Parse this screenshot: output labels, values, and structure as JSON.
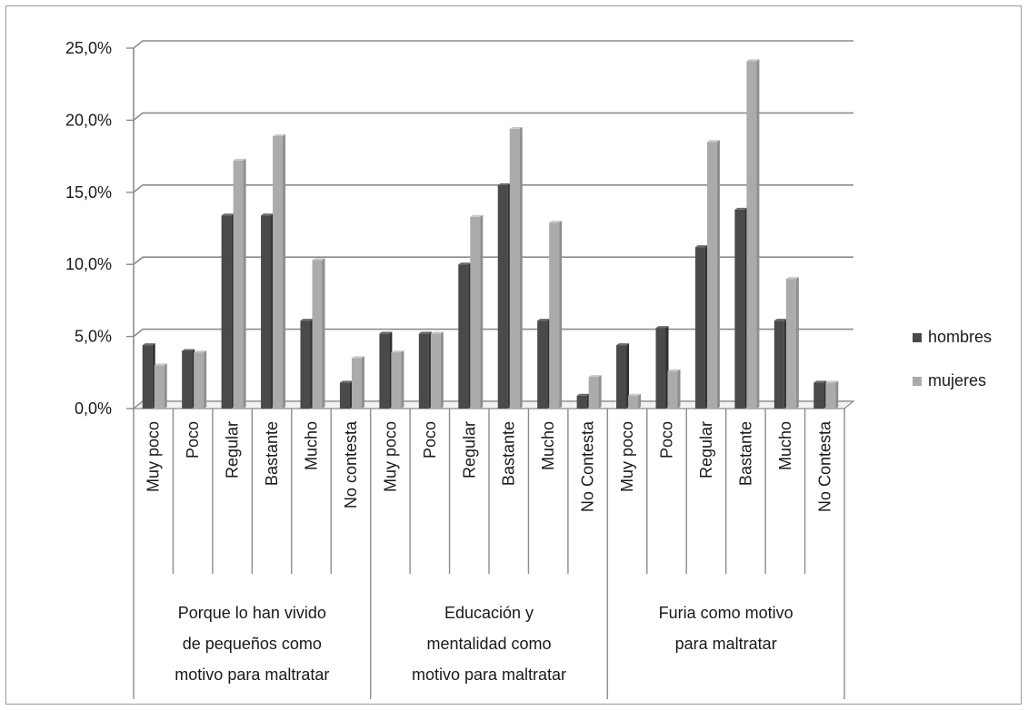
{
  "chart_data": {
    "type": "bar",
    "title": "",
    "xlabel": "",
    "ylabel": "",
    "ylim": [
      0,
      25
    ],
    "y_ticks": [
      "0,0%",
      "5,0%",
      "10,0%",
      "15,0%",
      "20,0%",
      "25,0%"
    ],
    "grid": true,
    "legend_position": "right",
    "categories": [
      "Muy poco",
      "Poco",
      "Regular",
      "Bastante",
      "Mucho",
      "No contesta",
      "Muy poco",
      "Poco",
      "Regular",
      "Bastante",
      "Mucho",
      "No Contesta",
      "Muy poco",
      "Poco",
      "Regular",
      "Bastante",
      "Mucho",
      "No Contesta"
    ],
    "groups": [
      {
        "label_lines": [
          "Porque lo han vivido",
          "de pequeños como",
          "motivo para maltratar"
        ],
        "span": 6
      },
      {
        "label_lines": [
          "Educación y",
          "mentalidad como",
          "motivo para maltratar"
        ],
        "span": 6
      },
      {
        "label_lines": [
          "Furia como motivo",
          "para maltratar"
        ],
        "span": 6
      }
    ],
    "series": [
      {
        "name": "hombres",
        "color": "#4a4a4a",
        "values": [
          4.4,
          4.0,
          13.4,
          13.4,
          6.1,
          1.8,
          5.2,
          5.2,
          10.0,
          15.5,
          6.1,
          0.9,
          4.4,
          5.6,
          11.2,
          13.8,
          6.1,
          1.8
        ]
      },
      {
        "name": "mujeres",
        "color": "#ababab",
        "values": [
          3.0,
          3.9,
          17.2,
          18.9,
          10.3,
          3.5,
          3.9,
          5.2,
          13.3,
          19.4,
          12.9,
          2.2,
          0.9,
          2.6,
          18.5,
          24.1,
          9.0,
          1.8
        ]
      }
    ]
  }
}
